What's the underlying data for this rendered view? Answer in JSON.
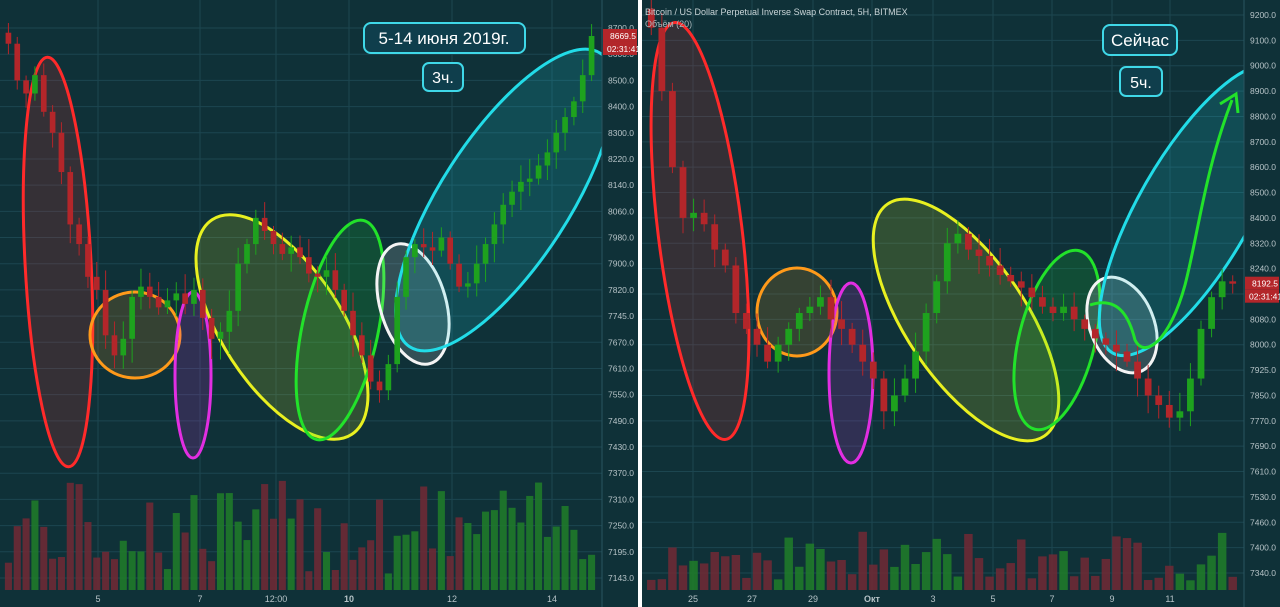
{
  "colors": {
    "background": "#0f3138",
    "grid": "#1c4650",
    "up": "#1ea21e",
    "down": "#b3262a",
    "axis_text": "#b6c3c7",
    "separator": "#ffffff",
    "label_bg": "#0f3e4c",
    "label_border": "#3fd8e8"
  },
  "chart_data": [
    {
      "type": "candlestick",
      "title": "",
      "annotations": [
        "5-14 июня 2019г.",
        "3ч."
      ],
      "x_tick_labels": [
        "5",
        "7",
        "12:00",
        "10",
        "12",
        "14"
      ],
      "y_tick_labels": [
        "8700.0",
        "8600.0",
        "8500.0",
        "8400.0",
        "8300.0",
        "8220.0",
        "8140.0",
        "8060.0",
        "7980.0",
        "7900.0",
        "7820.0",
        "7745.0",
        "7670.0",
        "7610.0",
        "7550.0",
        "7490.0",
        "7430.0",
        "7370.0",
        "7310.0",
        "7250.0",
        "7195.0",
        "7143.0"
      ],
      "price_label": "8669.5",
      "timer_label": "02:31:41",
      "ylim": [
        7143,
        8700
      ],
      "volume_bars": true,
      "highlights": [
        {
          "color": "#ff2a2a",
          "phase": "drop"
        },
        {
          "color": "#ff9a1a",
          "phase": "range"
        },
        {
          "color": "#e22ee2",
          "phase": "dip"
        },
        {
          "color": "#e8f020",
          "phase": "decline"
        },
        {
          "color": "#22e22a",
          "phase": "reversal"
        },
        {
          "color": "#f4f4f4",
          "phase": "retest"
        },
        {
          "color": "#22dce8",
          "phase": "rally"
        }
      ],
      "close_path": [
        8640,
        8500,
        8450,
        8520,
        8380,
        8300,
        8180,
        8020,
        7960,
        7860,
        7820,
        7690,
        7640,
        7680,
        7800,
        7830,
        7800,
        7770,
        7790,
        7810,
        7780,
        7820,
        7740,
        7680,
        7700,
        7760,
        7900,
        7960,
        8040,
        8000,
        7960,
        7930,
        7950,
        7920,
        7870,
        7860,
        7880,
        7820,
        7760,
        7690,
        7640,
        7580,
        7560,
        7620,
        7800,
        7920,
        7960,
        7950,
        7940,
        7980,
        7900,
        7830,
        7840,
        7900,
        7960,
        8020,
        8080,
        8120,
        8150,
        8160,
        8200,
        8240,
        8300,
        8360,
        8420,
        8520,
        8669.5
      ]
    },
    {
      "type": "candlestick",
      "title": "Bitcoin / US Dollar Perpetual Inverse Swap Contract, 5H, BITMEX",
      "subtitle": "Объём (20)",
      "annotations": [
        "Сейчас",
        "5ч."
      ],
      "x_tick_labels": [
        "25",
        "27",
        "29",
        "Окт",
        "3",
        "5",
        "7",
        "9",
        "11"
      ],
      "y_tick_labels": [
        "9200.0",
        "9100.0",
        "9000.0",
        "8900.0",
        "8800.0",
        "8700.0",
        "8600.0",
        "8500.0",
        "8400.0",
        "8320.0",
        "8240.0",
        "8160.0",
        "8080.0",
        "8000.0",
        "7925.0",
        "7850.0",
        "7770.0",
        "7690.0",
        "7610.0",
        "7530.0",
        "7460.0",
        "7400.0",
        "7340.0"
      ],
      "price_label": "8192.5",
      "timer_label": "02:31:41",
      "ylim": [
        7340,
        9200
      ],
      "volume_bars": true,
      "highlights": [
        {
          "color": "#ff2a2a",
          "phase": "drop"
        },
        {
          "color": "#ff9a1a",
          "phase": "range"
        },
        {
          "color": "#e22ee2",
          "phase": "dip"
        },
        {
          "color": "#e8f020",
          "phase": "decline"
        },
        {
          "color": "#22e22a",
          "phase": "reversal"
        },
        {
          "color": "#f4f4f4",
          "phase": "retest"
        },
        {
          "color": "#22dce8",
          "phase": "projection"
        }
      ],
      "projection_arrow": {
        "color": "#22e22a"
      },
      "close_path": [
        9150,
        8900,
        8600,
        8400,
        8420,
        8380,
        8300,
        8250,
        8100,
        8050,
        8000,
        7950,
        8000,
        8050,
        8100,
        8120,
        8150,
        8080,
        8050,
        8000,
        7950,
        7900,
        7800,
        7850,
        7900,
        7980,
        8100,
        8200,
        8320,
        8350,
        8300,
        8280,
        8250,
        8220,
        8200,
        8180,
        8150,
        8120,
        8100,
        8120,
        8080,
        8050,
        8020,
        8000,
        7980,
        7950,
        7900,
        7850,
        7820,
        7780,
        7800,
        7900,
        8050,
        8150,
        8200,
        8192.5
      ]
    }
  ]
}
